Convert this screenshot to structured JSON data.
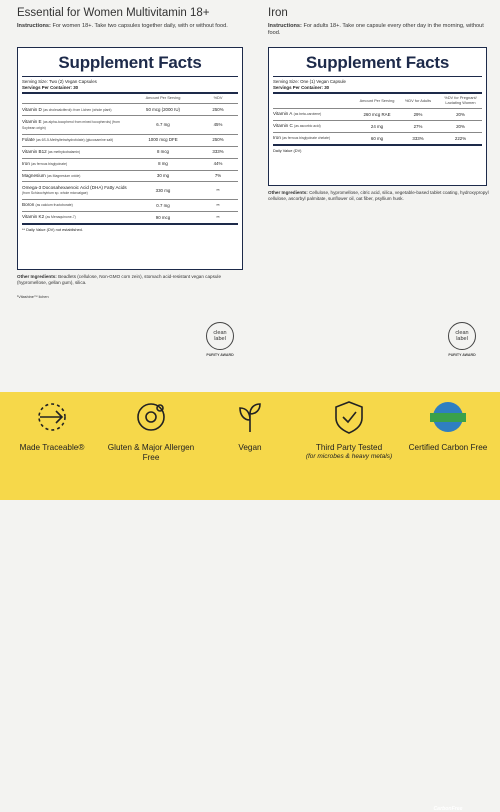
{
  "left": {
    "title": "Essential for Women Multivitamin 18+",
    "instructions_label": "Instructions:",
    "instructions": "For women 18+. Take two capsules together daily, with or without food.",
    "facts": {
      "heading": "Supplement Facts",
      "serving_size": "Serving Size: Two (2) Vegan Capsules",
      "servings": "Servings Per Container: 30",
      "columns": [
        "Amount Per Serving",
        "%DV"
      ],
      "rows": [
        {
          "name": "Vitamin D",
          "sub": "(as cholecalciferol)¹ from Lichen (whole plant)",
          "amount": "50 mcg (2000 IU)",
          "dv": "250%"
        },
        {
          "name": "Vitamin E",
          "sub": "(as alpha-tocopherol from mixed tocopherols) (from Soybean origin)",
          "amount": "6.7 mg",
          "dv": "45%"
        },
        {
          "name": "Folate",
          "sub": "(as 6S-5-Methyltetrahydrofolate) (glucosamine salt)",
          "amount": "1000 mcg DFE",
          "dv": "250%"
        },
        {
          "name": "Vitamin B12",
          "sub": "(as methylcobalamin)",
          "amount": "8 mcg",
          "dv": "333%"
        },
        {
          "name": "Iron",
          "sub": "(as ferrous bisglycinate)",
          "amount": "8 mg",
          "dv": "44%"
        },
        {
          "name": "Magnesium",
          "sub": "(as Magnesium oxide)",
          "amount": "30 mg",
          "dv": "7%"
        },
        {
          "name": "Omega-3 Docosahexaenoic Acid (DHA) Fatty Acids",
          "sub": "(from Schizochytrium sp. whole microalgae)",
          "amount": "330 mg",
          "dv": "**"
        },
        {
          "name": "Boron",
          "sub": "(as calcium fructoborate)",
          "amount": "0.7 mg",
          "dv": "**"
        },
        {
          "name": "Vitamin K2",
          "sub": "(as Menaquinone-7)",
          "amount": "90 mcg",
          "dv": "**"
        }
      ],
      "footnote": "** Daily Value (DV) not established."
    },
    "other_label": "Other Ingredients:",
    "other": "Beadlets (cellulose, Non-GMO corn zein), stomach acid-resistant vegan capsule (hypromellose, gellan gum), silica.",
    "source_note": "¹Vitashine™ lichen"
  },
  "right": {
    "title": "Iron",
    "instructions_label": "Instructions:",
    "instructions": "For adults 18+. Take one capsule every other day in the morning, without food.",
    "facts": {
      "heading": "Supplement Facts",
      "serving_size": "Serving Size: One (1) Vegan Capsule",
      "servings": "Servings Per Container: 30",
      "columns": [
        "Amount Per Serving",
        "%DV for Adults",
        "%DV for Pregnant/ Lactating Women"
      ],
      "rows": [
        {
          "name": "Vitamin A",
          "sub": "(as beta-carotene)",
          "amount": "260 mcg RAE",
          "dv": "29%",
          "dv2": "20%"
        },
        {
          "name": "Vitamin C",
          "sub": "(as ascorbic acid)",
          "amount": "24 mg",
          "dv": "27%",
          "dv2": "20%"
        },
        {
          "name": "Iron",
          "sub": "(as ferrous bisglycinate chelate)",
          "amount": "60 mg",
          "dv": "333%",
          "dv2": "222%"
        }
      ],
      "footnote": "Daily Value (DV)"
    },
    "other_label": "Other Ingredients:",
    "other": "Cellulose, hypromellose, citric acid, silica, vegetable-based tablet coating, hydroxypropyl cellulose, ascorbyl palmitate, sunflower oil, oat fiber, psyllium husk."
  },
  "badge": {
    "line1": "clean",
    "line2": "label",
    "award": "PURITY AWARD"
  },
  "features": [
    {
      "label": "Made Traceable®"
    },
    {
      "label": "Gluten & Major Allergen Free"
    },
    {
      "label": "Vegan"
    },
    {
      "label": "Third Party Tested",
      "note": "(for microbes & heavy metals)"
    },
    {
      "label": "Certified Carbon Free",
      "logo": "CarbonFree"
    }
  ]
}
